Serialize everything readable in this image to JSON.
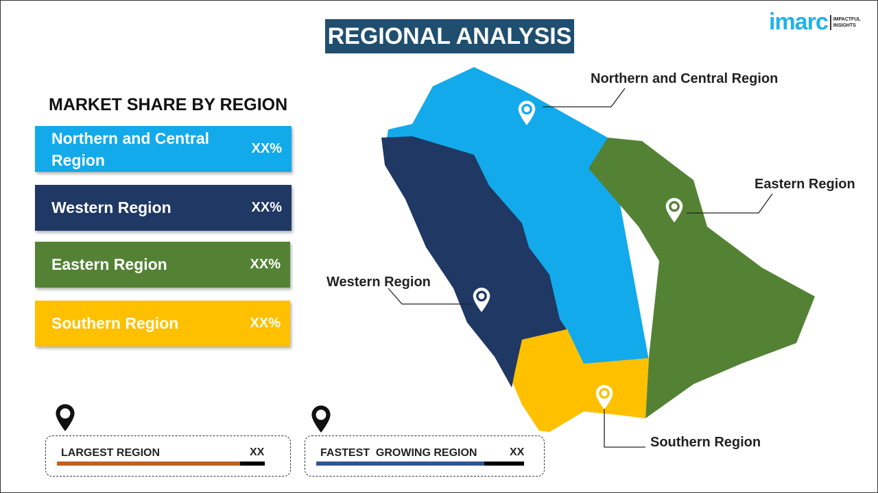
{
  "title": "REGIONAL ANALYSIS",
  "logo": {
    "word": "imarc",
    "tagline_1": "IMPACTFUL",
    "tagline_2": "INSIGHTS"
  },
  "legend": {
    "heading": "MARKET SHARE BY REGION",
    "items": [
      {
        "label": "Northern and Central Region",
        "value": "XX%",
        "color": "#12aaeb"
      },
      {
        "label": "Western Region",
        "value": "XX%",
        "color": "#1f3864"
      },
      {
        "label": "Eastern Region",
        "value": "XX%",
        "color": "#548235"
      },
      {
        "label": "Southern Region",
        "value": "XX%",
        "color": "#ffc000"
      }
    ]
  },
  "map": {
    "labels": {
      "north": "Northern and Central Region",
      "east": "Eastern Region",
      "west": "Western Region",
      "south": "Southern Region"
    }
  },
  "summary": {
    "largest": {
      "label": "LARGEST REGION",
      "value": "XX",
      "bar_color": "#c0601f"
    },
    "fastest": {
      "label": "FASTEST  GROWING REGION",
      "value": "XX",
      "bar_color": "#2f5597"
    }
  }
}
